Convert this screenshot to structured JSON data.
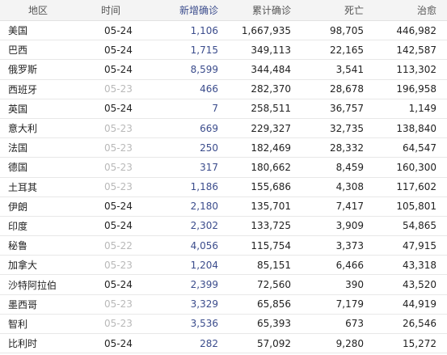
{
  "table": {
    "columns": {
      "region": "地区",
      "time": "时间",
      "new_confirmed": "新增确诊",
      "total_confirmed": "累计确诊",
      "deaths": "死亡",
      "cured": "治愈"
    },
    "rows": [
      {
        "region": "美国",
        "time": "05-24",
        "new": "1,106",
        "total": "1,667,935",
        "deaths": "98,705",
        "cured": "446,982",
        "time_color": "#222222"
      },
      {
        "region": "巴西",
        "time": "05-24",
        "new": "1,715",
        "total": "349,113",
        "deaths": "22,165",
        "cured": "142,587",
        "time_color": "#222222"
      },
      {
        "region": "俄罗斯",
        "time": "05-24",
        "new": "8,599",
        "total": "344,484",
        "deaths": "3,541",
        "cured": "113,302",
        "time_color": "#222222"
      },
      {
        "region": "西班牙",
        "time": "05-23",
        "new": "466",
        "total": "282,370",
        "deaths": "28,678",
        "cured": "196,958",
        "time_color": "#b9b9b9"
      },
      {
        "region": "英国",
        "time": "05-24",
        "new": "7",
        "total": "258,511",
        "deaths": "36,757",
        "cured": "1,149",
        "time_color": "#222222"
      },
      {
        "region": "意大利",
        "time": "05-23",
        "new": "669",
        "total": "229,327",
        "deaths": "32,735",
        "cured": "138,840",
        "time_color": "#b9b9b9"
      },
      {
        "region": "法国",
        "time": "05-23",
        "new": "250",
        "total": "182,469",
        "deaths": "28,332",
        "cured": "64,547",
        "time_color": "#b9b9b9"
      },
      {
        "region": "德国",
        "time": "05-23",
        "new": "317",
        "total": "180,662",
        "deaths": "8,459",
        "cured": "160,300",
        "time_color": "#b9b9b9"
      },
      {
        "region": "土耳其",
        "time": "05-23",
        "new": "1,186",
        "total": "155,686",
        "deaths": "4,308",
        "cured": "117,602",
        "time_color": "#b9b9b9"
      },
      {
        "region": "伊朗",
        "time": "05-24",
        "new": "2,180",
        "total": "135,701",
        "deaths": "7,417",
        "cured": "105,801",
        "time_color": "#222222"
      },
      {
        "region": "印度",
        "time": "05-24",
        "new": "2,302",
        "total": "133,725",
        "deaths": "3,909",
        "cured": "54,865",
        "time_color": "#222222"
      },
      {
        "region": "秘鲁",
        "time": "05-22",
        "new": "4,056",
        "total": "115,754",
        "deaths": "3,373",
        "cured": "47,915",
        "time_color": "#b9b9b9"
      },
      {
        "region": "加拿大",
        "time": "05-23",
        "new": "1,204",
        "total": "85,151",
        "deaths": "6,466",
        "cured": "43,318",
        "time_color": "#b9b9b9"
      },
      {
        "region": "沙特阿拉伯",
        "time": "05-24",
        "new": "2,399",
        "total": "72,560",
        "deaths": "390",
        "cured": "43,520",
        "time_color": "#222222"
      },
      {
        "region": "墨西哥",
        "time": "05-23",
        "new": "3,329",
        "total": "65,856",
        "deaths": "7,179",
        "cured": "44,919",
        "time_color": "#b9b9b9"
      },
      {
        "region": "智利",
        "time": "05-23",
        "new": "3,536",
        "total": "65,393",
        "deaths": "673",
        "cured": "26,546",
        "time_color": "#b9b9b9"
      },
      {
        "region": "比利时",
        "time": "05-24",
        "new": "282",
        "total": "57,092",
        "deaths": "9,280",
        "cured": "15,272",
        "time_color": "#222222"
      }
    ]
  },
  "colors": {
    "new_confirmed": "#3b4c8c",
    "header_bg": "#f4f4f4",
    "stale_time": "#b9b9b9",
    "row_border": "#e8e8e8"
  }
}
